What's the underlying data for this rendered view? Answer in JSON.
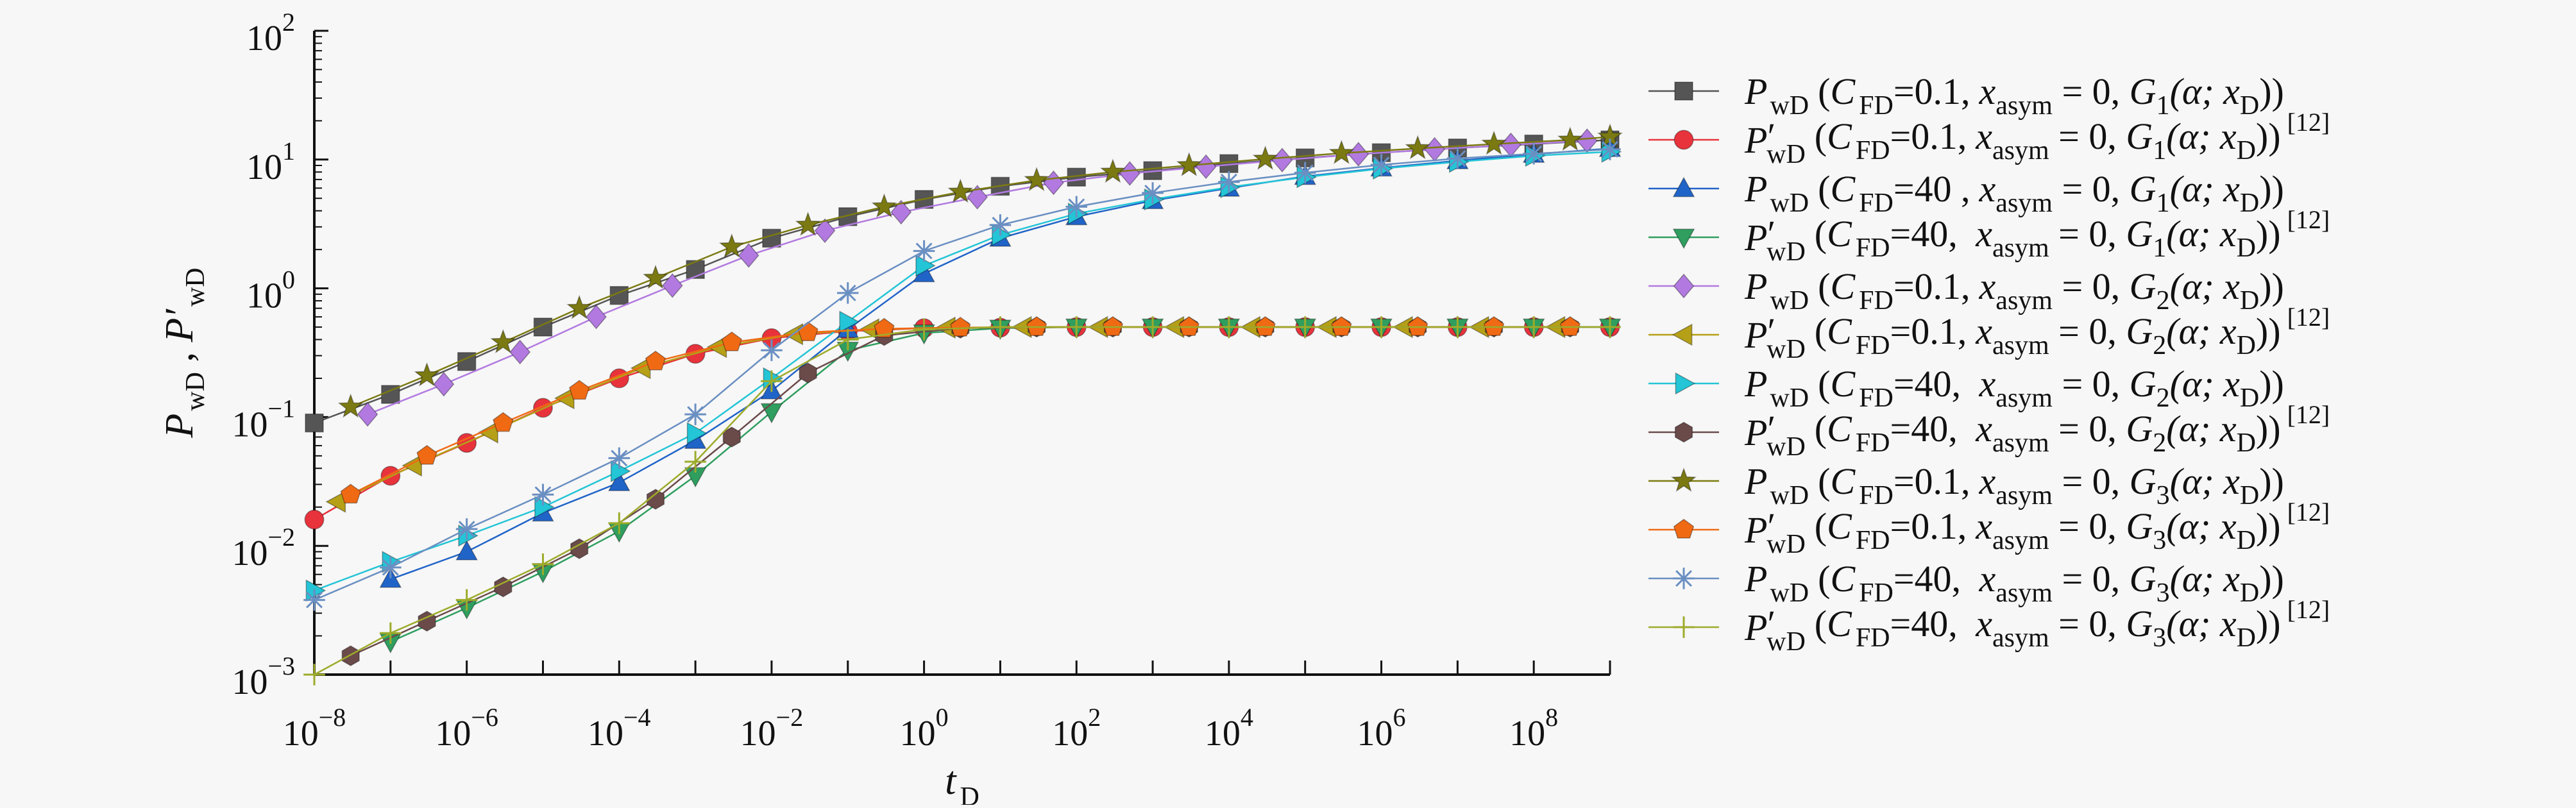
{
  "chart_data": {
    "type": "line",
    "x_scale": "log",
    "y_scale": "log",
    "xlim": [
      1e-08,
      1000000000.0
    ],
    "ylim": [
      0.001,
      100
    ],
    "x_ticks": [
      {
        "base": "10",
        "exp": "−8",
        "value": 1e-08
      },
      {
        "base": "10",
        "exp": "−6",
        "value": 1e-06
      },
      {
        "base": "10",
        "exp": "−4",
        "value": 0.0001
      },
      {
        "base": "10",
        "exp": "−2",
        "value": 0.01
      },
      {
        "base": "10",
        "exp": "0",
        "value": 1
      },
      {
        "base": "10",
        "exp": "2",
        "value": 100
      },
      {
        "base": "10",
        "exp": "4",
        "value": 10000.0
      },
      {
        "base": "10",
        "exp": "6",
        "value": 1000000.0
      },
      {
        "base": "10",
        "exp": "8",
        "value": 100000000.0
      }
    ],
    "y_ticks": [
      {
        "base": "10",
        "exp": "−3",
        "value": 0.001
      },
      {
        "base": "10",
        "exp": "−2",
        "value": 0.01
      },
      {
        "base": "10",
        "exp": "−1",
        "value": 0.1
      },
      {
        "base": "10",
        "exp": "0",
        "value": 1
      },
      {
        "base": "10",
        "exp": "1",
        "value": 10
      },
      {
        "base": "10",
        "exp": "2",
        "value": 100
      }
    ],
    "xlabel": {
      "main": "t",
      "sub": "D"
    },
    "ylabel": {
      "p1": "P",
      "s1": "wD",
      "sep": " , ",
      "p2": "P′",
      "s2": "wD"
    },
    "grid": false,
    "legend_position": "right",
    "series": [
      {
        "name": "P_wD (C_FD=0.1, x_asym = 0, G_1(α; x_D))",
        "legend": {
          "prime": false,
          "cfd": "0.1,",
          "g": "1",
          "ref": ""
        },
        "color": "#555555",
        "marker": "square",
        "x": [
          1e-08,
          1e-07,
          1e-06,
          1e-05,
          0.0001,
          0.001,
          0.01,
          0.1,
          1,
          10,
          100,
          1000,
          10000,
          100000,
          1000000,
          10000000,
          100000000,
          1000000000
        ],
        "y": [
          0.09,
          0.15,
          0.27,
          0.5,
          0.88,
          1.4,
          2.45,
          3.6,
          4.9,
          6.2,
          7.3,
          8.2,
          9.3,
          10.3,
          11.3,
          12.3,
          13.2,
          14.2
        ]
      },
      {
        "name": "P′_wD (C_FD=0.1, x_asym = 0, G_1(α; x_D)) [12]",
        "legend": {
          "prime": true,
          "cfd": "0.1,",
          "g": "1",
          "ref": "[12]"
        },
        "color": "#e8333c",
        "marker": "circle",
        "x": [
          1e-08,
          1e-07,
          1e-06,
          1e-05,
          0.0001,
          0.001,
          0.01,
          0.1,
          1,
          10,
          100,
          1000,
          10000,
          100000,
          1000000,
          10000000,
          100000000,
          1000000000
        ],
        "y": [
          0.016,
          0.035,
          0.063,
          0.118,
          0.2,
          0.31,
          0.41,
          0.465,
          0.49,
          0.495,
          0.5,
          0.5,
          0.5,
          0.5,
          0.5,
          0.5,
          0.5,
          0.5
        ]
      },
      {
        "name": "P_wD (C_FD=40 , x_asym = 0, G_1(α; x_D))",
        "legend": {
          "prime": false,
          "cfd": "40 ,",
          "g": "1",
          "ref": ""
        },
        "color": "#2164c8",
        "marker": "triangle-up",
        "x": [
          1e-07,
          1e-06,
          1e-05,
          0.0001,
          0.001,
          0.01,
          0.1,
          1,
          10,
          100,
          1000,
          10000,
          100000,
          1000000,
          10000000,
          100000000,
          1000000000
        ],
        "y": [
          0.0055,
          0.009,
          0.018,
          0.031,
          0.066,
          0.16,
          0.48,
          1.3,
          2.45,
          3.6,
          4.8,
          6.0,
          7.4,
          8.6,
          9.8,
          11.0,
          12.2
        ]
      },
      {
        "name": "P′_wD (C_FD=40,  x_asym = 0, G_1(α; x_D)) [12]",
        "legend": {
          "prime": true,
          "cfd": "40, ",
          "g": "1",
          "ref": "[12]"
        },
        "color": "#2f9e5f",
        "marker": "triangle-down",
        "x": [
          1e-07,
          1e-06,
          1e-05,
          0.0001,
          0.001,
          0.01,
          0.1,
          1,
          10,
          100,
          1000,
          10000,
          100000,
          1000000,
          10000000,
          100000000,
          1000000000
        ],
        "y": [
          0.0018,
          0.0033,
          0.0063,
          0.013,
          0.035,
          0.11,
          0.33,
          0.45,
          0.49,
          0.5,
          0.5,
          0.5,
          0.5,
          0.5,
          0.5,
          0.5,
          0.5
        ]
      },
      {
        "name": "P_wD (C_FD=0.1, x_asym = 0, G_2(α; x_D))",
        "legend": {
          "prime": false,
          "cfd": "0.1,",
          "g": "2",
          "ref": ""
        },
        "color": "#b27ae0",
        "marker": "diamond",
        "x": [
          5e-08,
          5e-07,
          5e-06,
          5e-05,
          0.0005,
          0.005,
          0.05,
          0.5,
          5,
          50,
          500,
          5000,
          50000,
          500000,
          5000000,
          50000000,
          500000000
        ],
        "y": [
          0.105,
          0.18,
          0.32,
          0.6,
          1.05,
          1.8,
          2.8,
          3.9,
          5.1,
          6.6,
          7.8,
          8.8,
          9.9,
          11.0,
          12.0,
          13.0,
          14.0
        ]
      },
      {
        "name": "P′_wD (C_FD=0.1, x_asym = 0, G_2(α; x_D)) [12]",
        "legend": {
          "prime": true,
          "cfd": "0.1,",
          "g": "2",
          "ref": "[12]"
        },
        "color": "#b5a017",
        "marker": "triangle-left",
        "x": [
          2e-08,
          2e-07,
          2e-06,
          2e-05,
          0.0002,
          0.002,
          0.02,
          0.2,
          2,
          20,
          200,
          2000,
          20000,
          200000,
          2000000,
          20000000,
          200000000
        ],
        "y": [
          0.022,
          0.042,
          0.076,
          0.14,
          0.24,
          0.35,
          0.44,
          0.48,
          0.495,
          0.5,
          0.5,
          0.5,
          0.5,
          0.5,
          0.5,
          0.5,
          0.5
        ]
      },
      {
        "name": "P_wD (C_FD=40,  x_asym = 0, G_2(α; x_D))",
        "legend": {
          "prime": false,
          "cfd": "40, ",
          "g": "2",
          "ref": ""
        },
        "color": "#23c5d6",
        "marker": "triangle-right",
        "x": [
          1e-08,
          1e-07,
          1e-06,
          1e-05,
          0.0001,
          0.001,
          0.01,
          0.1,
          1,
          10,
          100,
          1000,
          10000,
          100000,
          1000000,
          10000000,
          100000000,
          1000000000
        ],
        "y": [
          0.0045,
          0.0075,
          0.012,
          0.02,
          0.038,
          0.075,
          0.2,
          0.55,
          1.5,
          2.6,
          3.8,
          4.9,
          6.1,
          7.3,
          8.5,
          9.6,
          10.7,
          11.5
        ]
      },
      {
        "name": "P′_wD (C_FD=40,  x_asym = 0, G_2(α; x_D)) [12]",
        "legend": {
          "prime": true,
          "cfd": "40, ",
          "g": "2",
          "ref": "[12]"
        },
        "color": "#6b4a4a",
        "marker": "hexagon",
        "x": [
          3e-08,
          3e-07,
          3e-06,
          3e-05,
          0.0003,
          0.003,
          0.03,
          0.3,
          3,
          30,
          300,
          3000,
          30000,
          300000,
          3000000,
          30000000,
          300000000
        ],
        "y": [
          0.0014,
          0.0026,
          0.0048,
          0.0095,
          0.023,
          0.07,
          0.22,
          0.43,
          0.49,
          0.5,
          0.5,
          0.5,
          0.5,
          0.5,
          0.5,
          0.5,
          0.5
        ]
      },
      {
        "name": "P_wD (C_FD=0.1, x_asym = 0, G_3(α; x_D))",
        "legend": {
          "prime": false,
          "cfd": "0.1,",
          "g": "3",
          "ref": ""
        },
        "color": "#7b7a12",
        "marker": "star",
        "x": [
          3e-08,
          3e-07,
          3e-06,
          3e-05,
          0.0003,
          0.003,
          0.03,
          0.3,
          3,
          30,
          300,
          3000,
          30000,
          300000,
          3000000,
          30000000,
          300000000,
          1000000000
        ],
        "y": [
          0.12,
          0.21,
          0.38,
          0.7,
          1.2,
          2.1,
          3.1,
          4.3,
          5.6,
          6.9,
          8.0,
          9.0,
          10.1,
          11.2,
          12.2,
          13.2,
          14.2,
          15.0
        ]
      },
      {
        "name": "P′_wD (C_FD=0.1, x_asym = 0, G_3(α; x_D)) [12]",
        "legend": {
          "prime": true,
          "cfd": "0.1,",
          "g": "3",
          "ref": "[12]"
        },
        "color": "#f06a14",
        "marker": "pentagon",
        "x": [
          3e-08,
          3e-07,
          3e-06,
          3e-05,
          0.0003,
          0.003,
          0.03,
          0.3,
          3,
          30,
          300,
          3000,
          30000,
          300000,
          3000000,
          30000000,
          300000000
        ],
        "y": [
          0.025,
          0.05,
          0.09,
          0.16,
          0.27,
          0.38,
          0.455,
          0.485,
          0.495,
          0.5,
          0.5,
          0.5,
          0.5,
          0.5,
          0.5,
          0.5,
          0.5
        ]
      },
      {
        "name": "P_wD (C_FD=40,  x_asym = 0, G_3(α; x_D))",
        "legend": {
          "prime": false,
          "cfd": "40, ",
          "g": "3",
          "ref": ""
        },
        "color": "#6a8fc2",
        "marker": "asterisk",
        "x": [
          1e-08,
          1e-07,
          1e-06,
          1e-05,
          0.0001,
          0.001,
          0.01,
          0.1,
          1,
          10,
          100,
          1000,
          10000,
          100000,
          1000000,
          10000000,
          100000000,
          1000000000
        ],
        "y": [
          0.0038,
          0.0068,
          0.0135,
          0.025,
          0.048,
          0.105,
          0.33,
          0.92,
          1.95,
          3.1,
          4.3,
          5.5,
          6.7,
          7.9,
          9.1,
          10.2,
          11.1,
          12.0
        ]
      },
      {
        "name": "P′_wD (C_FD=40,  x_asym = 0, G_3(α; x_D)) [12]",
        "legend": {
          "prime": true,
          "cfd": "40, ",
          "g": "3",
          "ref": "[12]"
        },
        "color": "#9dab2a",
        "marker": "plus",
        "x": [
          1e-08,
          1e-07,
          1e-06,
          1e-05,
          0.0001,
          0.001,
          0.01,
          0.1,
          1,
          10,
          100,
          1000,
          10000,
          100000,
          1000000,
          10000000,
          100000000,
          1000000000
        ],
        "y": [
          0.001,
          0.0021,
          0.0038,
          0.0072,
          0.015,
          0.045,
          0.19,
          0.4,
          0.48,
          0.5,
          0.5,
          0.5,
          0.5,
          0.5,
          0.5,
          0.5,
          0.5,
          0.5
        ]
      }
    ]
  },
  "legend_text": {
    "cfd_main": "C",
    "cfd_sub": "FD",
    "eq": "=",
    "xasym_main": "x",
    "xasym_sub": "asym",
    "xasym_eq": " = 0, ",
    "g_main": "G",
    "alpha_part": "(α; ",
    "xd_main": "x",
    "xd_sub": "D",
    "close": "))",
    "open_paren": "(",
    "p_main": "P",
    "p_prime": "′",
    "p_sub": "wD"
  }
}
